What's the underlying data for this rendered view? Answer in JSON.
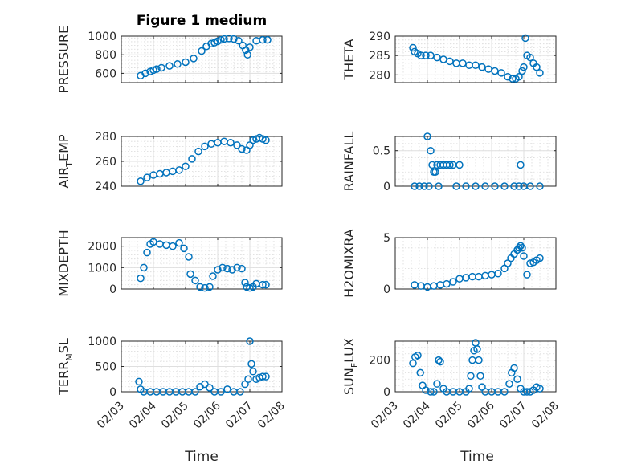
{
  "figure": {
    "title": "Figure 1 medium",
    "marker_color": "#0072BD",
    "x_tick_labels": [
      "02/03",
      "02/04",
      "02/05",
      "02/06",
      "02/07",
      "02/08"
    ],
    "x_axis_label": "Time"
  },
  "chart_data": [
    {
      "type": "scatter",
      "ylabel": "PRESSURE",
      "ylim": [
        500,
        1000
      ],
      "yticks": [
        600,
        800,
        1000
      ],
      "xlim": [
        "02/03",
        "02/08"
      ],
      "grid": true,
      "x": [
        3.6,
        3.75,
        3.9,
        4.0,
        4.1,
        4.25,
        4.5,
        4.75,
        5.0,
        5.25,
        5.5,
        5.65,
        5.8,
        5.9,
        6.0,
        6.1,
        6.2,
        6.35,
        6.5,
        6.65,
        6.78,
        6.87,
        6.93,
        7.0,
        7.2,
        7.4,
        7.55
      ],
      "y": [
        575,
        600,
        620,
        635,
        645,
        660,
        680,
        700,
        720,
        760,
        840,
        890,
        920,
        930,
        945,
        960,
        970,
        975,
        970,
        950,
        900,
        850,
        800,
        880,
        950,
        960,
        960
      ]
    },
    {
      "type": "scatter",
      "ylabel": "THETA",
      "ylim": [
        278,
        290
      ],
      "yticks": [
        280,
        285,
        290
      ],
      "xlim": [
        "02/03",
        "02/08"
      ],
      "grid": true,
      "x": [
        3.55,
        3.6,
        3.7,
        3.8,
        3.95,
        4.1,
        4.3,
        4.5,
        4.7,
        4.9,
        5.1,
        5.3,
        5.5,
        5.7,
        5.9,
        6.1,
        6.3,
        6.5,
        6.65,
        6.75,
        6.85,
        6.95,
        7.0,
        7.05,
        7.1,
        7.2,
        7.3,
        7.4,
        7.5
      ],
      "y": [
        287,
        286,
        285.5,
        285,
        285,
        285,
        284.5,
        284,
        283.5,
        283,
        283,
        282.5,
        282.5,
        282,
        281.5,
        281,
        280.5,
        279.5,
        279,
        279,
        279.5,
        281,
        282,
        289.5,
        285,
        284.5,
        283,
        282,
        280.5
      ]
    },
    {
      "type": "scatter",
      "ylabel": "AIR_TEMP",
      "ylim": [
        240,
        280
      ],
      "yticks": [
        240,
        260,
        280
      ],
      "xlim": [
        "02/03",
        "02/08"
      ],
      "grid": true,
      "x": [
        3.6,
        3.8,
        4.0,
        4.2,
        4.4,
        4.6,
        4.8,
        5.0,
        5.2,
        5.4,
        5.6,
        5.8,
        6.0,
        6.2,
        6.4,
        6.6,
        6.75,
        6.9,
        7.0,
        7.1,
        7.2,
        7.3,
        7.4,
        7.5
      ],
      "y": [
        244,
        247,
        249,
        250,
        251,
        252,
        253,
        256,
        262,
        268,
        272,
        274,
        275,
        276,
        275,
        273,
        270,
        269,
        273,
        277,
        278,
        279,
        278,
        277
      ]
    },
    {
      "type": "scatter",
      "ylabel": "RAINFALL",
      "ylim": [
        0,
        0.7
      ],
      "yticks": [
        0,
        0.5
      ],
      "xlim": [
        "02/03",
        "02/08"
      ],
      "grid": true,
      "x": [
        3.6,
        3.75,
        3.9,
        4.0,
        4.05,
        4.1,
        4.15,
        4.2,
        4.25,
        4.3,
        4.35,
        4.4,
        4.5,
        4.6,
        4.7,
        4.8,
        4.9,
        5.0,
        5.2,
        5.5,
        5.8,
        6.1,
        6.4,
        6.7,
        6.85,
        6.9,
        7.0,
        7.2,
        7.5
      ],
      "y": [
        0,
        0,
        0,
        0.7,
        0,
        0.5,
        0.3,
        0.2,
        0.2,
        0.3,
        0,
        0.3,
        0.3,
        0.3,
        0.3,
        0.3,
        0,
        0.3,
        0,
        0,
        0,
        0,
        0,
        0,
        0,
        0.3,
        0,
        0,
        0
      ]
    },
    {
      "type": "scatter",
      "ylabel": "MIXDEPTH",
      "ylim": [
        0,
        2400
      ],
      "yticks": [
        0,
        1000,
        2000
      ],
      "xlim": [
        "02/03",
        "02/08"
      ],
      "grid": true,
      "x": [
        3.6,
        3.7,
        3.8,
        3.9,
        4.0,
        4.2,
        4.4,
        4.6,
        4.8,
        4.95,
        5.1,
        5.15,
        5.3,
        5.45,
        5.6,
        5.75,
        5.85,
        6.0,
        6.15,
        6.3,
        6.45,
        6.6,
        6.75,
        6.85,
        6.9,
        7.0,
        7.1,
        7.2,
        7.4,
        7.5
      ],
      "y": [
        500,
        1000,
        1700,
        2100,
        2200,
        2100,
        2050,
        2000,
        2150,
        1900,
        1500,
        700,
        400,
        100,
        50,
        100,
        600,
        900,
        1000,
        950,
        900,
        1000,
        950,
        300,
        100,
        50,
        100,
        250,
        200,
        200
      ]
    },
    {
      "type": "scatter",
      "ylabel": "H2OMIXRA",
      "ylim": [
        0,
        5
      ],
      "yticks": [
        0,
        5
      ],
      "xlim": [
        "02/03",
        "02/08"
      ],
      "grid": true,
      "x": [
        3.6,
        3.8,
        4.0,
        4.2,
        4.4,
        4.6,
        4.8,
        5.0,
        5.2,
        5.4,
        5.6,
        5.8,
        6.0,
        6.2,
        6.4,
        6.5,
        6.6,
        6.7,
        6.8,
        6.85,
        6.9,
        6.95,
        7.0,
        7.1,
        7.2,
        7.3,
        7.4,
        7.5
      ],
      "y": [
        0.4,
        0.3,
        0.2,
        0.3,
        0.4,
        0.5,
        0.7,
        1.0,
        1.1,
        1.2,
        1.2,
        1.3,
        1.4,
        1.5,
        2.0,
        2.5,
        3.0,
        3.4,
        3.8,
        4.0,
        4.2,
        4.0,
        3.2,
        1.4,
        2.5,
        2.6,
        2.8,
        3.0
      ]
    },
    {
      "type": "scatter",
      "ylabel": "TERR_MSL",
      "ylim": [
        0,
        1000
      ],
      "yticks": [
        0,
        500,
        1000
      ],
      "xlim": [
        "02/03",
        "02/08"
      ],
      "grid": true,
      "x": [
        3.55,
        3.6,
        3.7,
        3.9,
        4.1,
        4.3,
        4.5,
        4.7,
        4.9,
        5.1,
        5.3,
        5.45,
        5.6,
        5.75,
        5.9,
        6.1,
        6.3,
        6.5,
        6.7,
        6.85,
        6.95,
        7.0,
        7.05,
        7.1,
        7.2,
        7.3,
        7.4,
        7.5
      ],
      "y": [
        200,
        50,
        0,
        0,
        0,
        0,
        0,
        0,
        0,
        0,
        0,
        100,
        150,
        80,
        0,
        0,
        50,
        0,
        0,
        150,
        250,
        1000,
        550,
        400,
        250,
        280,
        300,
        300
      ]
    },
    {
      "type": "scatter",
      "ylabel": "SUN_FLUX",
      "ylim": [
        0,
        320
      ],
      "yticks": [
        0,
        200
      ],
      "xlim": [
        "02/03",
        "02/08"
      ],
      "grid": true,
      "x": [
        3.55,
        3.62,
        3.7,
        3.78,
        3.85,
        3.95,
        4.1,
        4.2,
        4.3,
        4.35,
        4.4,
        4.5,
        4.6,
        4.8,
        5.0,
        5.2,
        5.3,
        5.35,
        5.4,
        5.45,
        5.5,
        5.55,
        5.6,
        5.65,
        5.7,
        5.8,
        6.0,
        6.2,
        6.4,
        6.55,
        6.62,
        6.7,
        6.8,
        6.9,
        7.0,
        7.1,
        7.2,
        7.3,
        7.4,
        7.5
      ],
      "y": [
        180,
        220,
        230,
        120,
        40,
        10,
        0,
        0,
        50,
        200,
        190,
        20,
        0,
        0,
        0,
        0,
        20,
        100,
        200,
        260,
        310,
        270,
        200,
        100,
        30,
        0,
        0,
        0,
        0,
        50,
        120,
        150,
        80,
        20,
        0,
        0,
        0,
        10,
        30,
        20
      ]
    }
  ]
}
